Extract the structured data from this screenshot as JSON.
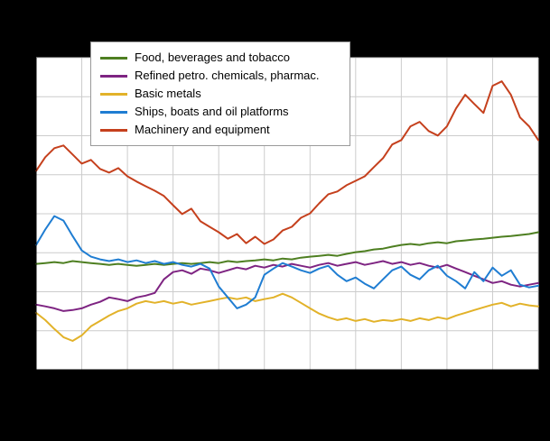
{
  "window": {
    "background": "#000000",
    "plot_background": "#ffffff",
    "grid_color": "#cccccc",
    "axis_color": "#000000"
  },
  "chart_data": {
    "type": "line",
    "grid": true,
    "legend_position": "top-left",
    "ylim": [
      40,
      200
    ],
    "y_gridline_step": 20,
    "x_gridline_count": 12,
    "x_point_count": 56,
    "series": [
      {
        "name": "Food, beverages and tobacco",
        "color": "#4e7f21",
        "values": [
          94.3,
          94.7,
          95.2,
          94.7,
          95.7,
          95.2,
          94.7,
          94.3,
          93.8,
          94.3,
          93.8,
          93.3,
          93.8,
          94.3,
          93.8,
          94.3,
          94.7,
          94.3,
          94.7,
          95.2,
          94.7,
          95.7,
          95.2,
          95.7,
          96.1,
          96.6,
          96.1,
          97.0,
          96.6,
          97.5,
          98.0,
          98.4,
          98.9,
          98.4,
          99.4,
          100.3,
          100.8,
          101.7,
          102.1,
          103.1,
          104.0,
          104.5,
          104.0,
          104.9,
          105.4,
          104.9,
          105.9,
          106.3,
          106.8,
          107.2,
          107.7,
          108.2,
          108.6,
          109.1,
          109.6,
          110.5
        ]
      },
      {
        "name": "Refined petro. chemicals, pharmac.",
        "color": "#7e2482",
        "values": [
          73.4,
          72.5,
          71.5,
          70.1,
          70.6,
          71.5,
          73.4,
          74.8,
          77.1,
          76.2,
          75.2,
          77.1,
          78.0,
          79.4,
          86.4,
          90.1,
          91.0,
          89.2,
          91.9,
          91.0,
          89.6,
          91.0,
          92.4,
          91.5,
          93.3,
          92.4,
          93.8,
          92.9,
          94.3,
          93.3,
          92.4,
          93.8,
          94.7,
          93.3,
          94.3,
          95.2,
          93.8,
          94.7,
          95.7,
          94.3,
          95.2,
          93.8,
          94.7,
          93.3,
          92.4,
          93.8,
          91.9,
          90.1,
          88.2,
          86.4,
          84.5,
          85.4,
          83.6,
          82.7,
          83.6,
          84.5
        ]
      },
      {
        "name": "Basic metals",
        "color": "#e2b229",
        "values": [
          69.2,
          65.5,
          60.9,
          56.7,
          54.8,
          57.6,
          62.3,
          65.0,
          67.8,
          70.1,
          71.5,
          73.9,
          75.2,
          74.3,
          75.2,
          73.9,
          74.8,
          73.4,
          74.3,
          75.2,
          76.2,
          77.1,
          76.2,
          77.1,
          75.2,
          76.2,
          77.1,
          79.0,
          77.1,
          74.3,
          71.5,
          68.8,
          66.9,
          65.5,
          66.4,
          65.0,
          66.0,
          64.6,
          65.5,
          65.0,
          66.0,
          65.0,
          66.4,
          65.5,
          66.9,
          66.0,
          67.8,
          69.2,
          70.6,
          72.0,
          73.4,
          74.3,
          72.5,
          73.9,
          73.0,
          72.5
        ]
      },
      {
        "name": "Ships, boats and oil platforms",
        "color": "#1f7dd2",
        "values": [
          104.0,
          111.9,
          118.8,
          116.5,
          108.6,
          101.2,
          98.0,
          96.6,
          95.7,
          96.6,
          95.2,
          96.1,
          94.7,
          95.7,
          94.3,
          95.2,
          93.8,
          92.9,
          94.3,
          91.9,
          82.7,
          77.1,
          71.5,
          73.4,
          77.1,
          88.7,
          91.9,
          94.7,
          92.9,
          91.0,
          89.6,
          91.9,
          93.3,
          88.7,
          85.4,
          87.3,
          84.1,
          81.7,
          86.4,
          91.0,
          92.9,
          88.7,
          86.4,
          91.0,
          93.3,
          88.2,
          85.4,
          81.7,
          90.1,
          85.4,
          92.4,
          88.2,
          91.0,
          83.6,
          82.2,
          83.1
        ]
      },
      {
        "name": "Machinery and equipment",
        "color": "#c5401d",
        "values": [
          142.0,
          149.0,
          153.6,
          155.0,
          150.4,
          145.7,
          147.6,
          143.0,
          141.1,
          143.4,
          139.2,
          136.5,
          134.1,
          131.8,
          129.1,
          124.4,
          119.8,
          122.6,
          116.1,
          113.3,
          110.5,
          107.2,
          109.6,
          104.9,
          108.2,
          104.5,
          106.8,
          111.4,
          113.3,
          117.9,
          120.2,
          125.3,
          130.0,
          131.4,
          134.6,
          136.9,
          139.2,
          143.9,
          148.5,
          155.5,
          157.8,
          164.8,
          167.1,
          162.4,
          160.1,
          164.8,
          174.0,
          181.0,
          176.3,
          171.7,
          185.6,
          187.9,
          181.0,
          169.4,
          164.8,
          157.8
        ]
      }
    ]
  }
}
